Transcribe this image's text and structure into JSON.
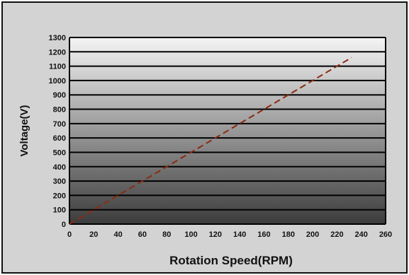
{
  "chart_data": {
    "type": "line",
    "title": "",
    "xlabel": "Rotation Speed(RPM)",
    "ylabel": "Voltage(V)",
    "xlim": [
      0,
      260
    ],
    "ylim": [
      0,
      1300
    ],
    "x_ticks": [
      "0",
      "20",
      "40",
      "60",
      "80",
      "100",
      "120",
      "140",
      "160",
      "180",
      "200",
      "220",
      "240",
      "260"
    ],
    "y_ticks": [
      "0",
      "100",
      "200",
      "300",
      "400",
      "500",
      "600",
      "700",
      "800",
      "900",
      "1000",
      "1100",
      "1200",
      "1300"
    ],
    "grid": "horizontal",
    "legend": "none",
    "series": [
      {
        "line_style": "dashed",
        "color": "#8b2a12",
        "x": [
          0,
          232
        ],
        "y": [
          0,
          1160
        ]
      }
    ],
    "colors": {
      "plot_top": "#f4f4f4",
      "plot_bottom": "#3c3c3c",
      "gridline": "#000000",
      "frame_bg": "#d3d3d3"
    }
  }
}
